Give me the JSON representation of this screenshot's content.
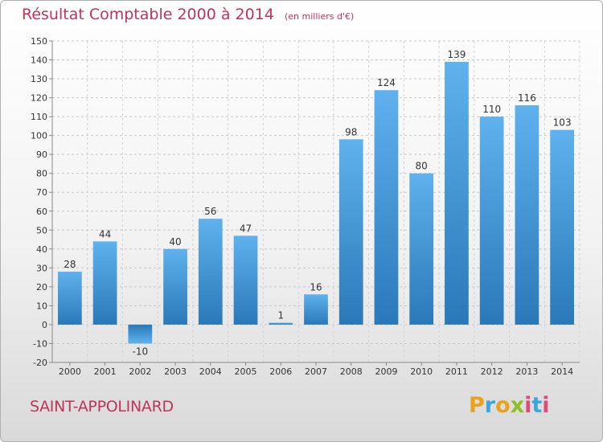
{
  "chart_data": {
    "type": "bar",
    "title": "Résultat Comptable 2000 à 2014",
    "subtitle": "(en milliers d'€)",
    "categories": [
      "2000",
      "2001",
      "2002",
      "2003",
      "2004",
      "2005",
      "2006",
      "2007",
      "2008",
      "2009",
      "2010",
      "2011",
      "2012",
      "2013",
      "2014"
    ],
    "values": [
      28,
      44,
      -10,
      40,
      56,
      47,
      1,
      16,
      98,
      124,
      80,
      139,
      110,
      116,
      103
    ],
    "ylim": [
      -20,
      150
    ],
    "yticks": [
      -20,
      -10,
      0,
      10,
      20,
      30,
      40,
      50,
      60,
      70,
      80,
      90,
      100,
      110,
      120,
      130,
      140,
      150
    ],
    "grid": true,
    "bar_color": "#3b8fd4"
  },
  "commune": "SAINT-APPOLINARD",
  "logo": {
    "letters": [
      "P",
      "r",
      "o",
      "x",
      "i",
      "t",
      "i"
    ],
    "colors": [
      "#e8a21c",
      "#3aa7dd",
      "#e8a21c",
      "#8fbf22",
      "#e14a78",
      "#3aa7dd",
      "#e14a78"
    ]
  }
}
